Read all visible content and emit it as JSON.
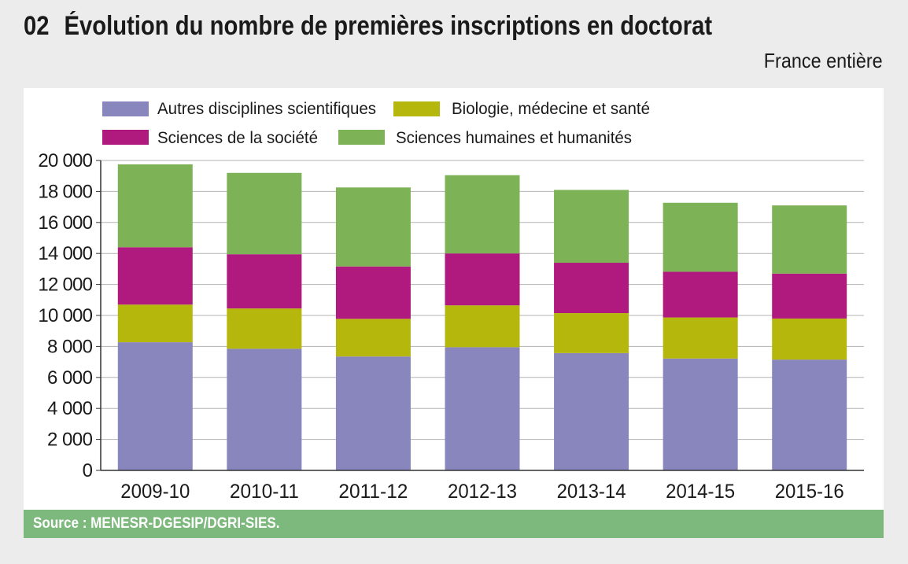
{
  "header": {
    "number": "02",
    "title": "Évolution du nombre de premières inscriptions en doctorat",
    "subtitle": "France entière"
  },
  "footer": {
    "source": "Source : MENESR-DGESIP/DGRI-SIES."
  },
  "chart_data": {
    "type": "bar",
    "stacked": true,
    "categories": [
      "2009-10",
      "2010-11",
      "2011-12",
      "2012-13",
      "2013-14",
      "2014-15",
      "2015-16"
    ],
    "series": [
      {
        "name": "Autres disciplines scientifiques",
        "color": "#8886bd",
        "values": [
          8270,
          7850,
          7350,
          7950,
          7570,
          7220,
          7150
        ]
      },
      {
        "name": "Biologie, médecine et santé",
        "color": "#b5b70d",
        "values": [
          2430,
          2600,
          2430,
          2700,
          2580,
          2650,
          2650
        ]
      },
      {
        "name": "Sciences de la société",
        "color": "#b0197d",
        "values": [
          3700,
          3500,
          3380,
          3350,
          3250,
          2950,
          2900
        ]
      },
      {
        "name": "Sciences humaines et humanités",
        "color": "#7db356",
        "values": [
          5350,
          5250,
          5100,
          5050,
          4700,
          4450,
          4400
        ]
      }
    ],
    "ylim": [
      0,
      20000
    ],
    "yticks": [
      0,
      2000,
      4000,
      6000,
      8000,
      10000,
      12000,
      14000,
      16000,
      18000,
      20000
    ],
    "ytick_labels": [
      "0",
      "2 000",
      "4 000",
      "6 000",
      "8 000",
      "10 000",
      "12 000",
      "14 000",
      "16 000",
      "18 000",
      "20 000"
    ],
    "grid": true,
    "legend_position": "top-left",
    "title": "",
    "xlabel": "",
    "ylabel": ""
  }
}
